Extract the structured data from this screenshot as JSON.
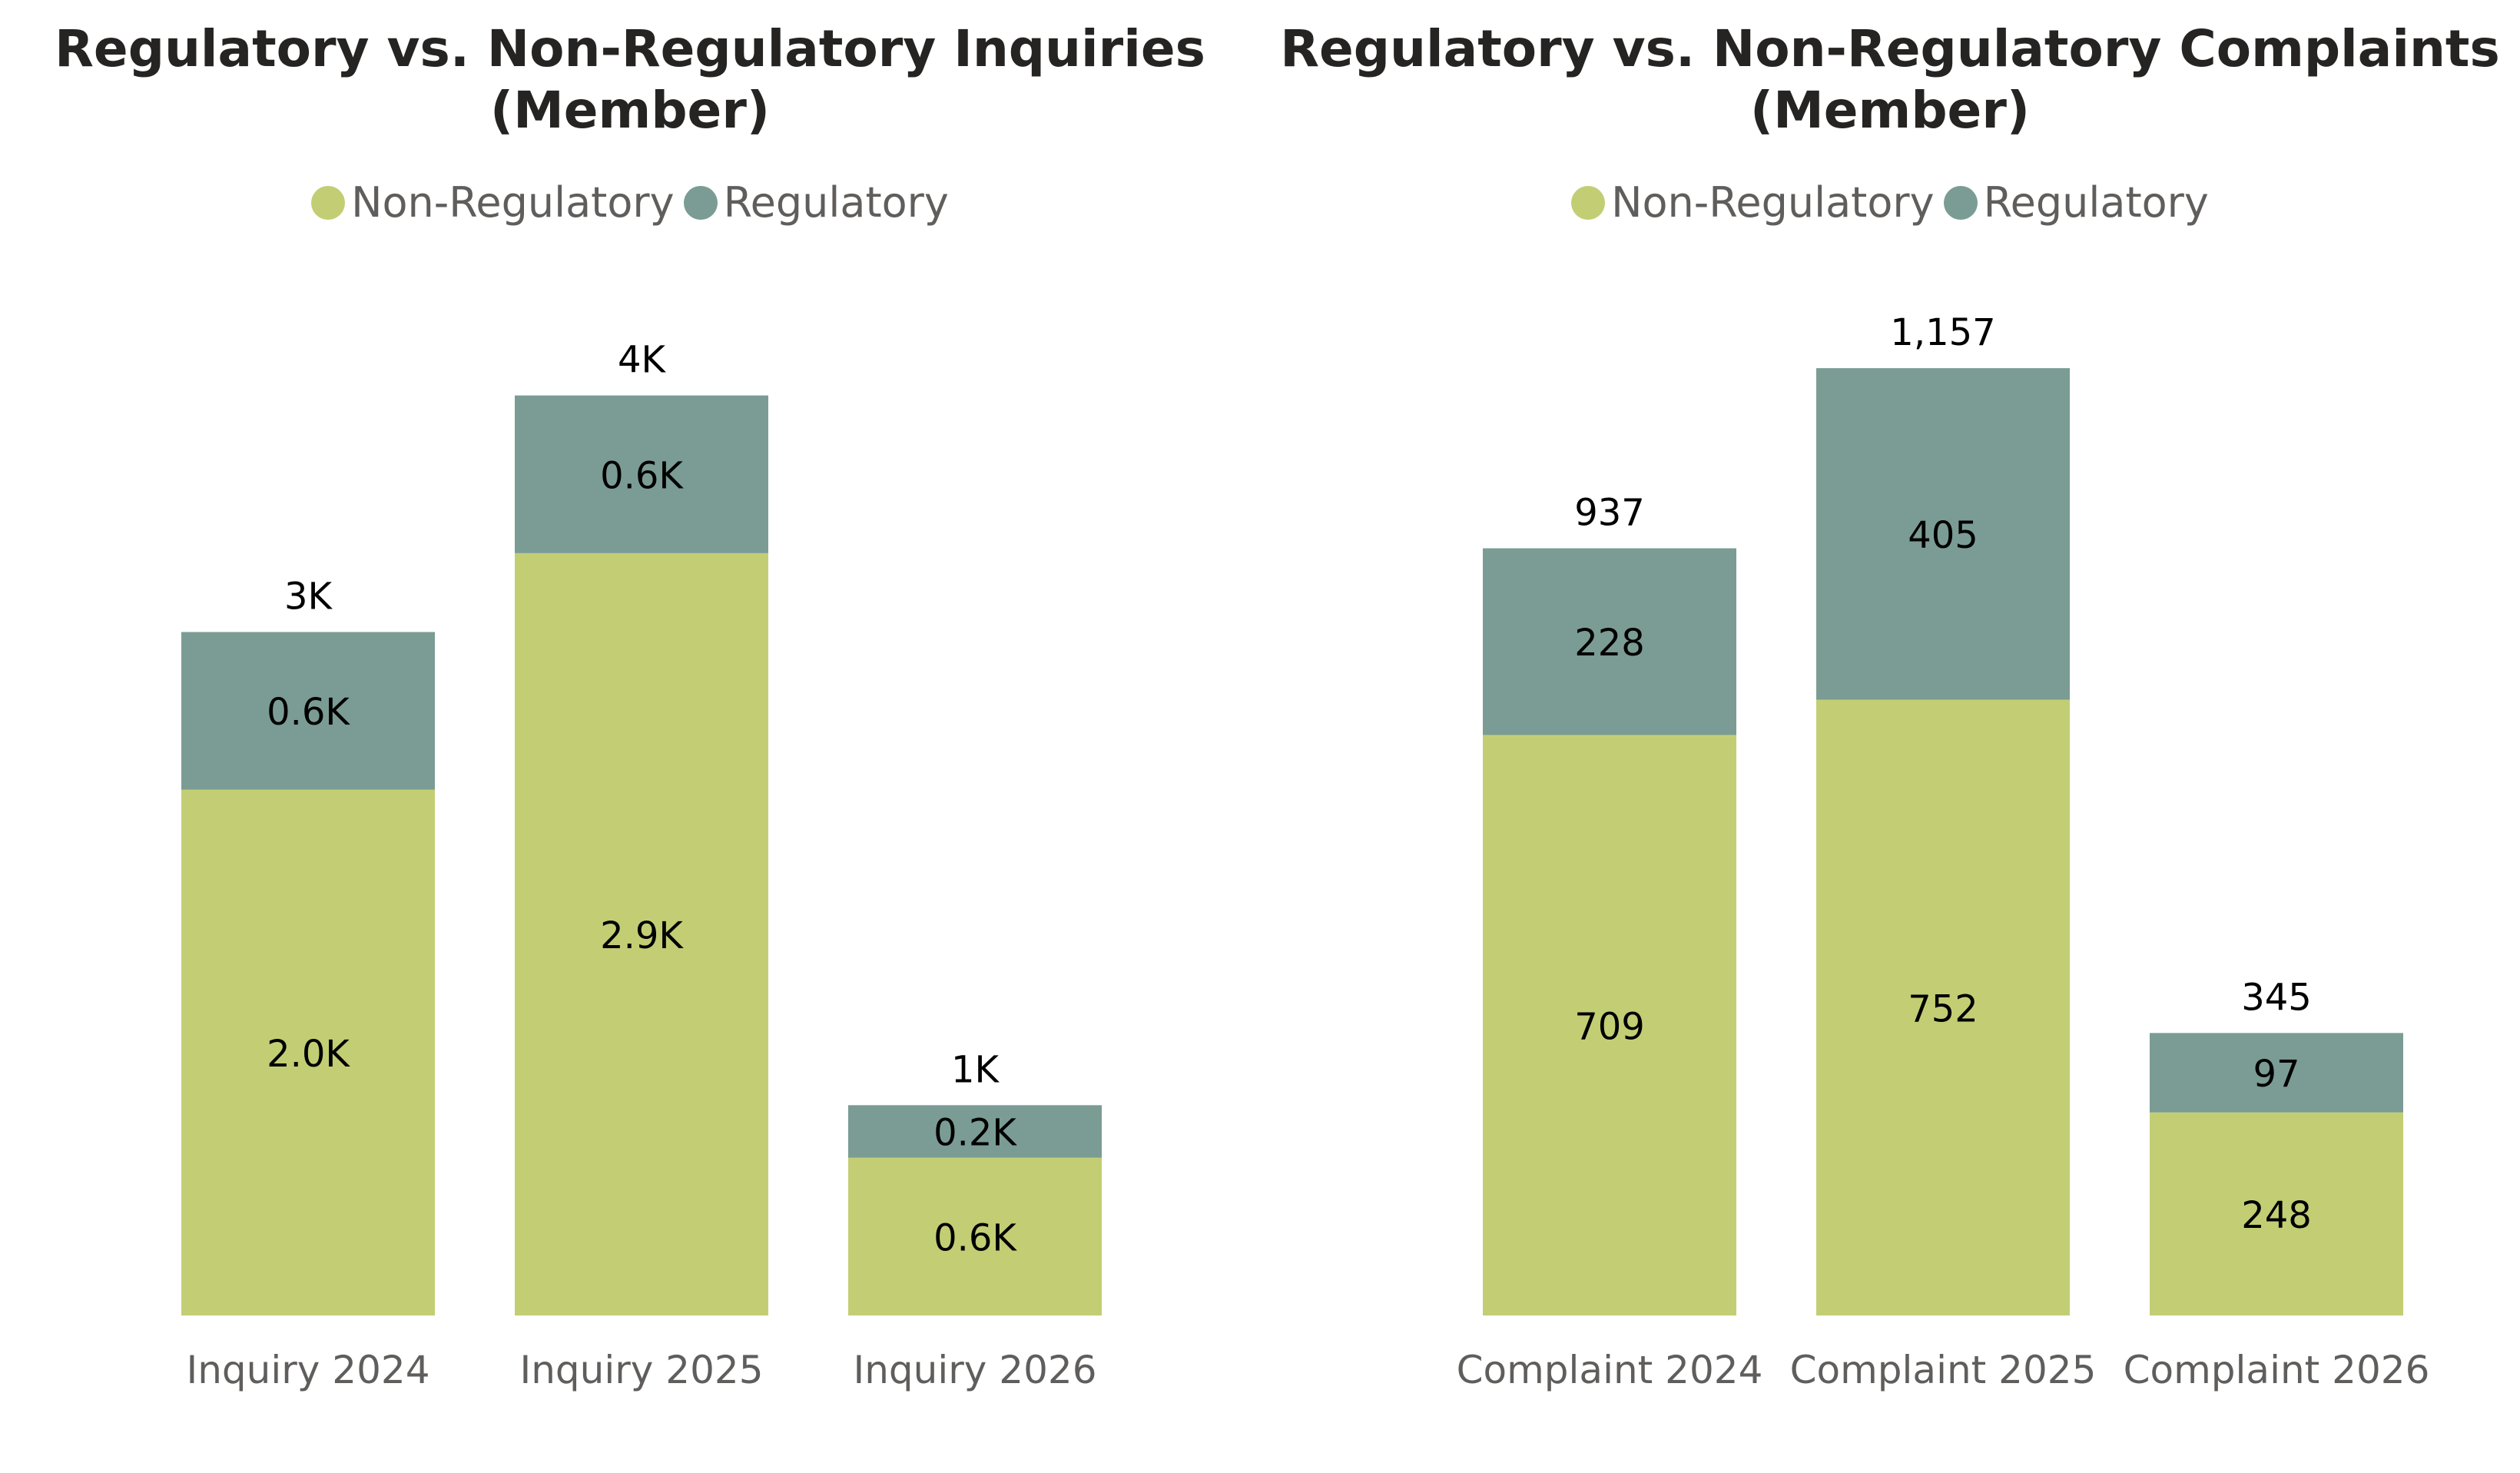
{
  "colors": {
    "non_regulatory": "#c3ce74",
    "regulatory": "#7a9c94",
    "data_label": "#000000",
    "axis_label": "#605e5c",
    "title": "#252423"
  },
  "chart_data": [
    {
      "type": "bar",
      "stacked": true,
      "title": "Regulatory vs. Non-Regulatory Inquiries",
      "subtitle": "(Member)",
      "legend_position": "top-center",
      "grid": false,
      "categories": [
        "Inquiry 2024",
        "Inquiry 2025",
        "Inquiry 2026"
      ],
      "series": [
        {
          "name": "Non-Regulatory",
          "values": [
            2000,
            2900,
            600
          ],
          "labels": [
            "2.0K",
            "2.9K",
            "0.6K"
          ]
        },
        {
          "name": "Regulatory",
          "values": [
            600,
            600,
            200
          ],
          "labels": [
            "0.6K",
            "0.6K",
            "0.2K"
          ]
        }
      ],
      "total_labels": [
        "3K",
        "4K",
        "1K"
      ],
      "ylim": [
        0,
        3800
      ],
      "xlabel": "",
      "ylabel": ""
    },
    {
      "type": "bar",
      "stacked": true,
      "title": "Regulatory vs. Non-Regulatory Complaints",
      "subtitle": "(Member)",
      "legend_position": "top-center",
      "grid": false,
      "categories": [
        "Complaint 2024",
        "Complaint 2025",
        "Complaint 2026"
      ],
      "series": [
        {
          "name": "Non-Regulatory",
          "values": [
            709,
            752,
            248
          ],
          "labels": [
            "709",
            "752",
            "248"
          ]
        },
        {
          "name": "Regulatory",
          "values": [
            228,
            405,
            97
          ],
          "labels": [
            "228",
            "405",
            "97"
          ]
        }
      ],
      "total_labels": [
        "937",
        "1,157",
        "345"
      ],
      "ylim": [
        0,
        1220
      ],
      "xlabel": "",
      "ylabel": ""
    }
  ]
}
